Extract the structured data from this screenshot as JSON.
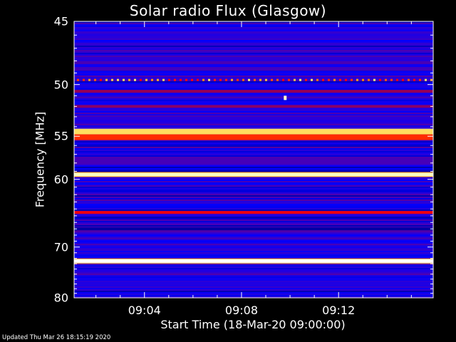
{
  "chart_data": {
    "type": "heatmap",
    "title": "Solar radio Flux (Glasgow)",
    "ylabel": "Frequency [MHz]",
    "xlabel": "Start Time (18-Mar-20 09:00:00)",
    "y_ticks": [
      45,
      50,
      55,
      60,
      70,
      80
    ],
    "y_scale": "reciprocal",
    "ylim": [
      45,
      80
    ],
    "x_ticks": [
      "09:04",
      "09:08",
      "09:12"
    ],
    "x_tick_minutes": [
      4,
      8,
      12
    ],
    "xlim_minutes": [
      1.1,
      15.9
    ],
    "colormap": [
      "#000033",
      "#0000ff",
      "#3b00c8",
      "#9b0050",
      "#ff0000",
      "#ff8000",
      "#ffff80",
      "#ffffff"
    ],
    "bands": [
      {
        "freq": 46.0,
        "level": 0.22
      },
      {
        "freq": 48.7,
        "level": 0.3
      },
      {
        "freq": 49.6,
        "level": 0.55,
        "dotted": true
      },
      {
        "freq": 50.6,
        "level": 0.42
      },
      {
        "freq": 52.0,
        "level": 0.4
      },
      {
        "freq": 54.5,
        "level": 0.82
      },
      {
        "freq": 55.1,
        "level": 0.62
      },
      {
        "freq": 59.4,
        "level": 0.93
      },
      {
        "freq": 61.5,
        "level": 0.12
      },
      {
        "freq": 64.5,
        "level": 0.55
      },
      {
        "freq": 67.0,
        "level": 0.08
      },
      {
        "freq": 72.5,
        "level": 1.0
      },
      {
        "freq": 76.0,
        "level": 0.18
      }
    ],
    "spikes": [
      {
        "time_minutes": 9.8,
        "freq": 51.2,
        "level": 0.95
      }
    ]
  },
  "footer": {
    "updated": "Updated Thu Mar 26 18:15:19 2020"
  }
}
